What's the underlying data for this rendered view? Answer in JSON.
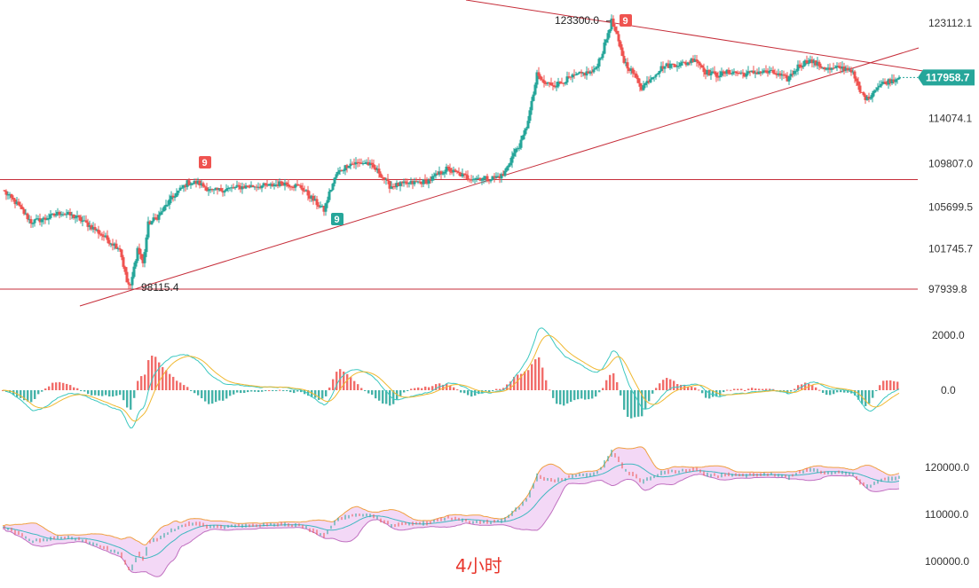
{
  "chart_data": {
    "type": "candlestick",
    "timeframe_label": "4小时",
    "price_axis": {
      "ticks": [
        "123112.1",
        "117958.7",
        "114074.1",
        "109807.0",
        "105699.5",
        "101745.7",
        "97939.8"
      ],
      "current_price": "117958.7",
      "current_price_color": "#26a69a",
      "range": [
        95500,
        125500
      ]
    },
    "macd_axis": {
      "ticks": [
        "2000.0",
        "0.0"
      ]
    },
    "boll_axis": {
      "ticks": [
        "120000.0",
        "110000.0",
        "100000.0"
      ]
    },
    "horizontal_levels": [
      108300,
      97939.8
    ],
    "annotations": {
      "high_label": "123300.0",
      "low_label": "98115.4",
      "td_high_1": "9",
      "td_low": "9",
      "td_high_2": "9"
    },
    "colors": {
      "up": "#26a69a",
      "down": "#ef5350",
      "trendline": "#c62e3a",
      "macd_fast": "#3cc8c0",
      "macd_slow": "#f0b830",
      "boll_band": "#f0a040",
      "boll_mid": "#40b8c0",
      "boll_fill": "#f3d8f6"
    },
    "anchors": [
      [
        0,
        107300
      ],
      [
        8,
        106000
      ],
      [
        16,
        104300
      ],
      [
        24,
        104600
      ],
      [
        33,
        105200
      ],
      [
        42,
        104700
      ],
      [
        52,
        103600
      ],
      [
        60,
        102500
      ],
      [
        66,
        101800
      ],
      [
        70,
        98600
      ],
      [
        72,
        98115.4
      ],
      [
        76,
        101800
      ],
      [
        79,
        100300
      ],
      [
        82,
        104100
      ],
      [
        88,
        104900
      ],
      [
        95,
        106500
      ],
      [
        104,
        108000
      ],
      [
        110,
        108000
      ],
      [
        118,
        107200
      ],
      [
        126,
        107400
      ],
      [
        134,
        107600
      ],
      [
        142,
        107700
      ],
      [
        150,
        107700
      ],
      [
        158,
        108000
      ],
      [
        168,
        107600
      ],
      [
        176,
        106200
      ],
      [
        181,
        105400
      ],
      [
        184,
        107000
      ],
      [
        188,
        108800
      ],
      [
        195,
        109800
      ],
      [
        205,
        109900
      ],
      [
        212,
        109000
      ],
      [
        218,
        107700
      ],
      [
        228,
        107900
      ],
      [
        240,
        108200
      ],
      [
        250,
        109300
      ],
      [
        262,
        108500
      ],
      [
        274,
        108400
      ],
      [
        282,
        108700
      ],
      [
        288,
        110800
      ],
      [
        292,
        111800
      ],
      [
        295,
        113300
      ],
      [
        298,
        115500
      ],
      [
        301,
        118200
      ],
      [
        305,
        117400
      ],
      [
        312,
        117300
      ],
      [
        318,
        117800
      ],
      [
        326,
        118300
      ],
      [
        333,
        118500
      ],
      [
        338,
        120400
      ],
      [
        341,
        122200
      ],
      [
        343,
        123300
      ],
      [
        346,
        121800
      ],
      [
        350,
        119500
      ],
      [
        355,
        118400
      ],
      [
        360,
        117000
      ],
      [
        366,
        118100
      ],
      [
        372,
        119000
      ],
      [
        378,
        119200
      ],
      [
        385,
        119300
      ],
      [
        390,
        119800
      ],
      [
        396,
        118500
      ],
      [
        402,
        118200
      ],
      [
        410,
        118500
      ],
      [
        418,
        118300
      ],
      [
        426,
        118500
      ],
      [
        434,
        118400
      ],
      [
        442,
        117800
      ],
      [
        448,
        119000
      ],
      [
        454,
        119600
      ],
      [
        460,
        119100
      ],
      [
        466,
        118700
      ],
      [
        472,
        118900
      ],
      [
        478,
        118700
      ],
      [
        483,
        116600
      ],
      [
        487,
        115900
      ],
      [
        492,
        117000
      ],
      [
        497,
        117500
      ],
      [
        505,
        117958.7
      ]
    ]
  }
}
